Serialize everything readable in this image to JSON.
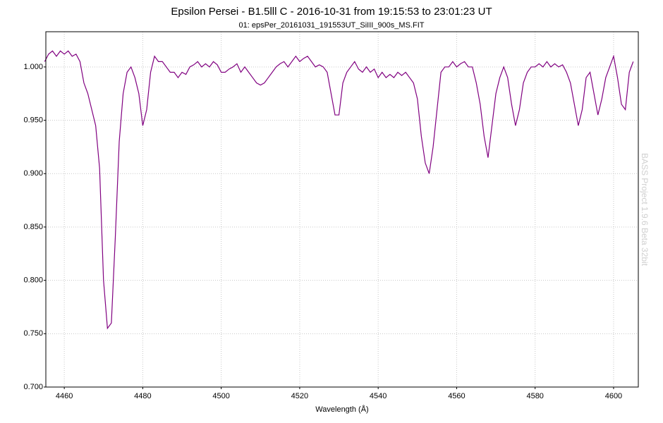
{
  "chart_data": {
    "type": "line",
    "title": "Epsilon Persei - B1.5lll C - 2016-10-31 from 19:15:53 to 23:01:23 UT",
    "subtitle": "01: epsPer_20161031_191553UT_SiIII_900s_MS.FIT",
    "x_label": "Wavelength (Å)",
    "annotation": "BASS Project 1.9.6 Beta 32bit",
    "color": "#800080",
    "grid": true,
    "xlim": [
      4455.3,
      4606.3
    ],
    "ylim": [
      0.7,
      1.033
    ],
    "xticks": [
      4460,
      4480,
      4500,
      4520,
      4540,
      4560,
      4580,
      4600
    ],
    "yticks": [
      {
        "value": 0.7,
        "label": "0.700"
      },
      {
        "value": 0.75,
        "label": "0.750"
      },
      {
        "value": 0.8,
        "label": "0.800"
      },
      {
        "value": 0.85,
        "label": "0.850"
      },
      {
        "value": 0.9,
        "label": "0.900"
      },
      {
        "value": 0.95,
        "label": "0.950"
      },
      {
        "value": 1,
        "label": "1.000"
      }
    ],
    "x": [
      4455,
      4456,
      4457,
      4458,
      4459,
      4460,
      4461,
      4462,
      4463,
      4464,
      4465,
      4466,
      4467,
      4468,
      4469,
      4470,
      4471,
      4472,
      4473,
      4474,
      4475,
      4476,
      4477,
      4478,
      4479,
      4480,
      4481,
      4482,
      4483,
      4484,
      4485,
      4486,
      4487,
      4488,
      4489,
      4490,
      4491,
      4492,
      4493,
      4494,
      4495,
      4496,
      4497,
      4498,
      4499,
      4500,
      4501,
      4502,
      4503,
      4504,
      4505,
      4506,
      4507,
      4508,
      4509,
      4510,
      4511,
      4512,
      4513,
      4514,
      4515,
      4516,
      4517,
      4518,
      4519,
      4520,
      4521,
      4522,
      4523,
      4524,
      4525,
      4526,
      4527,
      4528,
      4529,
      4530,
      4531,
      4532,
      4533,
      4534,
      4535,
      4536,
      4537,
      4538,
      4539,
      4540,
      4541,
      4542,
      4543,
      4544,
      4545,
      4546,
      4547,
      4548,
      4549,
      4550,
      4551,
      4552,
      4553,
      4554,
      4555,
      4556,
      4557,
      4558,
      4559,
      4560,
      4561,
      4562,
      4563,
      4564,
      4565,
      4566,
      4567,
      4568,
      4569,
      4570,
      4571,
      4572,
      4573,
      4574,
      4575,
      4576,
      4577,
      4578,
      4579,
      4580,
      4581,
      4582,
      4583,
      4584,
      4585,
      4586,
      4587,
      4588,
      4589,
      4590,
      4591,
      4592,
      4593,
      4594,
      4595,
      4596,
      4597,
      4598,
      4599,
      4600,
      4601,
      4602,
      4603,
      4604,
      4605
    ],
    "values": [
      1.005,
      1.012,
      1.015,
      1.01,
      1.015,
      1.012,
      1.015,
      1.01,
      1.012,
      1.005,
      0.985,
      0.975,
      0.96,
      0.945,
      0.905,
      0.8,
      0.755,
      0.76,
      0.84,
      0.93,
      0.975,
      0.995,
      1.0,
      0.99,
      0.975,
      0.945,
      0.96,
      0.995,
      1.01,
      1.005,
      1.005,
      1.0,
      0.995,
      0.995,
      0.99,
      0.995,
      0.993,
      1.0,
      1.002,
      1.005,
      1.0,
      1.003,
      1.0,
      1.005,
      1.002,
      0.995,
      0.995,
      0.998,
      1.0,
      1.003,
      0.995,
      1.0,
      0.995,
      0.99,
      0.985,
      0.983,
      0.985,
      0.99,
      0.995,
      1.0,
      1.003,
      1.005,
      1.0,
      1.005,
      1.01,
      1.005,
      1.008,
      1.01,
      1.005,
      1.0,
      1.002,
      1.0,
      0.995,
      0.975,
      0.955,
      0.955,
      0.985,
      0.995,
      1.0,
      1.005,
      0.998,
      0.995,
      1.0,
      0.995,
      0.998,
      0.99,
      0.995,
      0.99,
      0.993,
      0.99,
      0.995,
      0.992,
      0.995,
      0.99,
      0.985,
      0.97,
      0.935,
      0.91,
      0.9,
      0.925,
      0.96,
      0.995,
      1.0,
      1.0,
      1.005,
      1.0,
      1.003,
      1.005,
      1.0,
      1.0,
      0.985,
      0.965,
      0.935,
      0.915,
      0.945,
      0.975,
      0.99,
      1.0,
      0.99,
      0.965,
      0.945,
      0.96,
      0.985,
      0.995,
      1.0,
      1.0,
      1.003,
      1.0,
      1.005,
      1.0,
      1.003,
      1.0,
      1.002,
      0.995,
      0.985,
      0.965,
      0.945,
      0.96,
      0.99,
      0.995,
      0.975,
      0.955,
      0.97,
      0.99,
      1.0,
      1.01,
      0.99,
      0.965,
      0.96,
      0.995,
      1.005
    ]
  }
}
